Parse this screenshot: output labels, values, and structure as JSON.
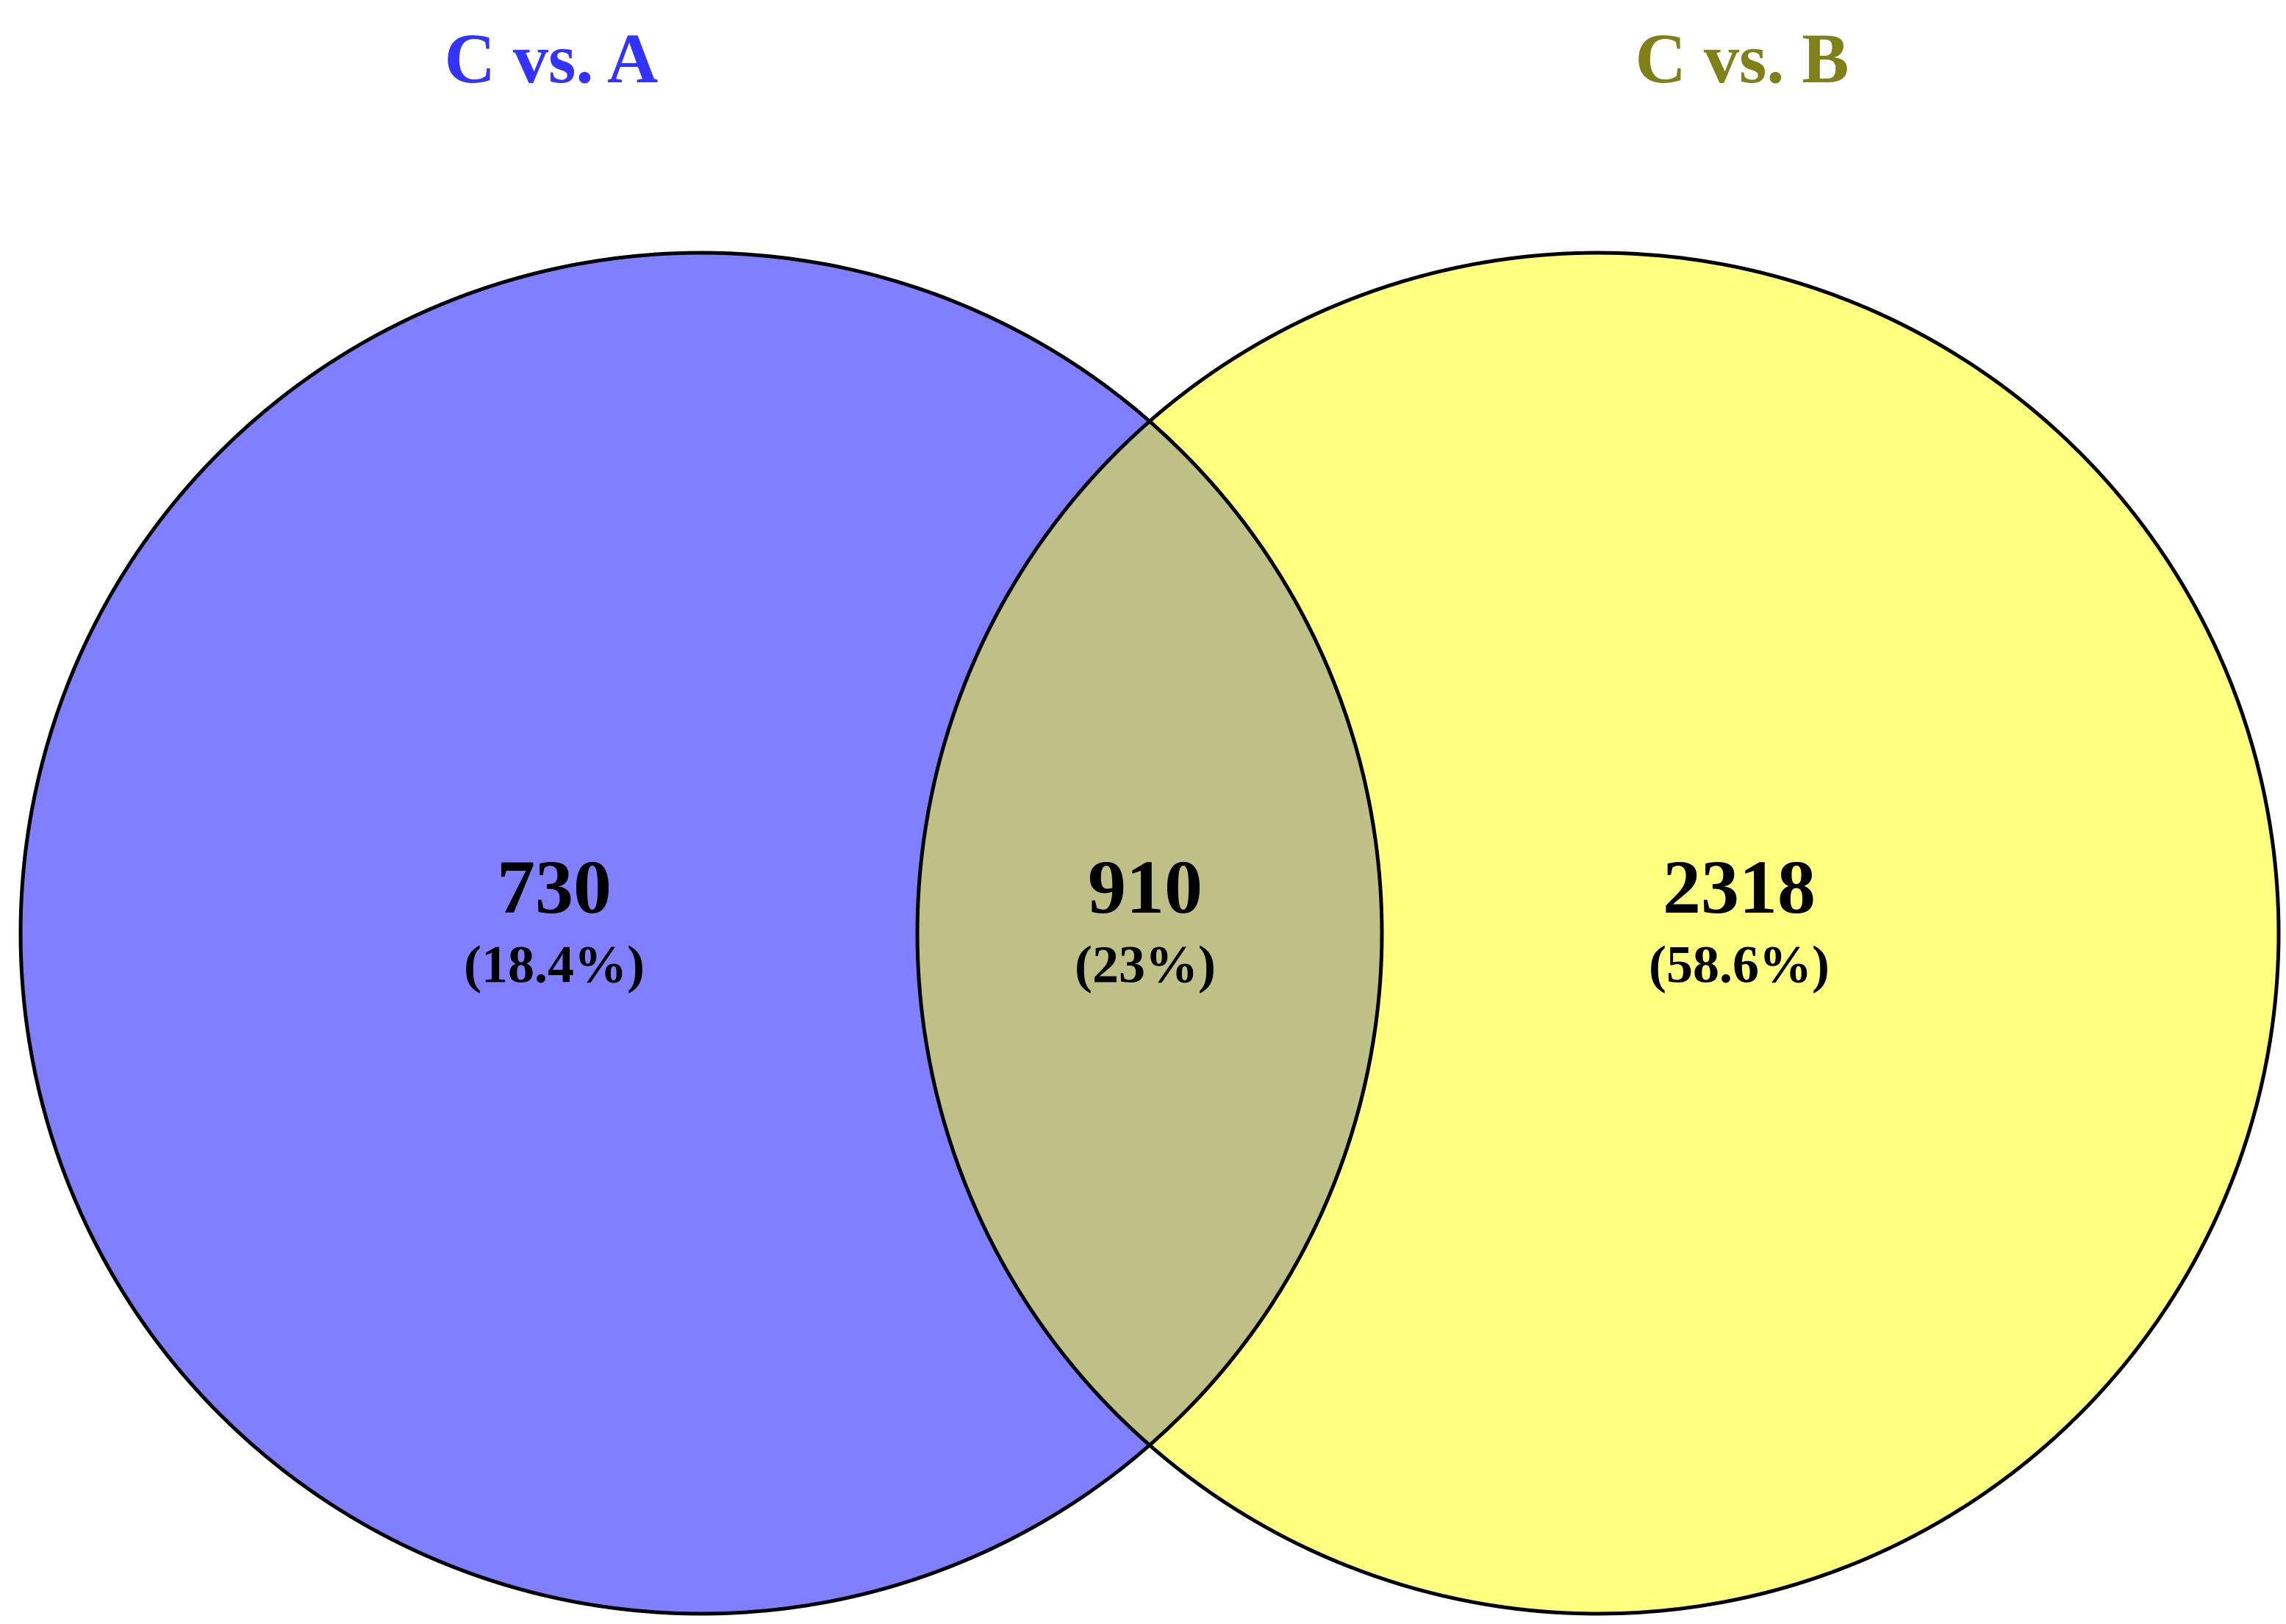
{
  "chart_data": {
    "type": "venn",
    "sets": [
      {
        "name": "C vs. A",
        "label_color": "#3333ff",
        "color": "#7f7fff"
      },
      {
        "name": "C vs. B",
        "label_color": "#808019",
        "color": "#ffff80"
      }
    ],
    "overlap_color": "#bfbf88",
    "values": [
      730,
      910,
      2318
    ],
    "percents": [
      18.4,
      23,
      58.6
    ],
    "percent_labels": [
      "(18.4%)",
      "(23%)",
      "(58.6%)"
    ]
  }
}
